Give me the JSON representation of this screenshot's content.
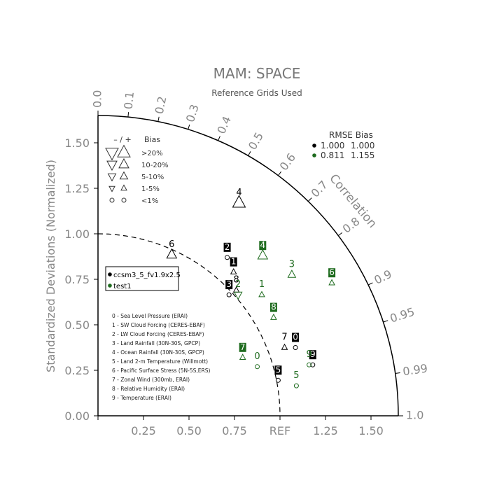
{
  "chart_data": {
    "type": "scatter",
    "diagram": "taylor",
    "title": "MAM: SPACE",
    "subtitle": "Reference Grids Used",
    "ylabel": "Standardized Deviations (Normalized)",
    "ref_label": "REF",
    "corr_label": "Correlation",
    "std_range": [
      0,
      1.65
    ],
    "std_ticks": [
      {
        "v": 0.0,
        "label": "0.00"
      },
      {
        "v": 0.25,
        "label": "0.25"
      },
      {
        "v": 0.5,
        "label": "0.50"
      },
      {
        "v": 0.75,
        "label": "0.75"
      },
      {
        "v": 1.0,
        "label": "1.00"
      },
      {
        "v": 1.25,
        "label": "1.25"
      },
      {
        "v": 1.5,
        "label": "1.50"
      }
    ],
    "x_ticks": [
      {
        "v": 0.25,
        "label": "0.25"
      },
      {
        "v": 0.5,
        "label": "0.50"
      },
      {
        "v": 0.75,
        "label": "0.75"
      },
      {
        "v": 1.25,
        "label": "1.25"
      },
      {
        "v": 1.5,
        "label": "1.50"
      }
    ],
    "corr_ticks": [
      {
        "v": 0.0,
        "label": "0.0"
      },
      {
        "v": 0.1,
        "label": "0.1"
      },
      {
        "v": 0.2,
        "label": "0.2"
      },
      {
        "v": 0.3,
        "label": "0.3"
      },
      {
        "v": 0.4,
        "label": "0.4"
      },
      {
        "v": 0.5,
        "label": "0.5"
      },
      {
        "v": 0.6,
        "label": "0.6"
      },
      {
        "v": 0.7,
        "label": "0.7"
      },
      {
        "v": 0.8,
        "label": "0.8"
      },
      {
        "v": 0.9,
        "label": "0.9"
      },
      {
        "v": 0.95,
        "label": "0.95"
      },
      {
        "v": 0.99,
        "label": "0.99"
      },
      {
        "v": 1.0,
        "label": "1.0"
      }
    ],
    "rmse_bias_header": "RMSE Bias",
    "rmse_bias": [
      {
        "rmse": "1.000",
        "bias": "1.000",
        "color": "#000000"
      },
      {
        "rmse": "0.811",
        "bias": "1.155",
        "color": "#1e6b1e"
      }
    ],
    "bias_legend": {
      "header_sign": "– / +",
      "header_bias": "Bias",
      "rows": [
        {
          "label": ">20%",
          "size": 9
        },
        {
          "label": "10-20%",
          "size": 7
        },
        {
          "label": "5-10%",
          "size": 5.5
        },
        {
          "label": "1-5%",
          "size": 4
        },
        {
          "label": "<1%",
          "size": 3
        }
      ]
    },
    "series": [
      {
        "name": "ccsm3_5_fv1.9x2.5",
        "color": "#000000",
        "points": [
          {
            "label": "0",
            "x": 1.085,
            "y": 0.375,
            "bias": "<1%",
            "dir": "+"
          },
          {
            "label": "1",
            "x": 0.745,
            "y": 0.79,
            "bias": "1-5%",
            "dir": "+"
          },
          {
            "label": "2",
            "x": 0.71,
            "y": 0.87,
            "bias": "<1%",
            "dir": "+"
          },
          {
            "label": "3",
            "x": 0.72,
            "y": 0.665,
            "bias": "<1%",
            "dir": "+"
          },
          {
            "label": "4",
            "x": 0.775,
            "y": 1.17,
            "bias": ">20%",
            "dir": "+"
          },
          {
            "label": "5",
            "x": 0.99,
            "y": 0.195,
            "bias": "<1%",
            "dir": "+"
          },
          {
            "label": "6",
            "x": 0.405,
            "y": 0.885,
            "bias": "10-20%",
            "dir": "+"
          },
          {
            "label": "7",
            "x": 1.025,
            "y": 0.375,
            "bias": "1-5%",
            "dir": "+"
          },
          {
            "label": "8",
            "x": 0.76,
            "y": 0.69,
            "bias": "1-5%",
            "dir": "+"
          },
          {
            "label": "9",
            "x": 1.18,
            "y": 0.28,
            "bias": "<1%",
            "dir": "+"
          }
        ]
      },
      {
        "name": "test1",
        "color": "#1e6b1e",
        "points": [
          {
            "label": "0",
            "x": 0.875,
            "y": 0.27,
            "bias": "<1%",
            "dir": "+"
          },
          {
            "label": "1",
            "x": 0.9,
            "y": 0.665,
            "bias": "1-5%",
            "dir": "+"
          },
          {
            "label": "2",
            "x": 0.77,
            "y": 0.665,
            "bias": "5-10%",
            "dir": "-"
          },
          {
            "label": "3",
            "x": 1.065,
            "y": 0.775,
            "bias": "5-10%",
            "dir": "+"
          },
          {
            "label": "4",
            "x": 0.905,
            "y": 0.88,
            "bias": "10-20%",
            "dir": "+"
          },
          {
            "label": "5",
            "x": 1.09,
            "y": 0.165,
            "bias": "<1%",
            "dir": "+"
          },
          {
            "label": "6",
            "x": 1.285,
            "y": 0.73,
            "bias": "1-5%",
            "dir": "+"
          },
          {
            "label": "7",
            "x": 0.795,
            "y": 0.32,
            "bias": "1-5%",
            "dir": "+"
          },
          {
            "label": "8",
            "x": 0.965,
            "y": 0.54,
            "bias": "1-5%",
            "dir": "+"
          },
          {
            "label": "9",
            "x": 1.16,
            "y": 0.28,
            "bias": "<1%",
            "dir": "+"
          }
        ]
      }
    ],
    "case_legend": [
      "0 - Sea Level Pressure (ERAI)",
      "1 - SW Cloud Forcing (CERES-EBAF)",
      "2 - LW Cloud Forcing (CERES-EBAF)",
      "3 - Land Rainfall (30N-30S, GPCP)",
      "4 - Ocean Rainfall (30N-30S, GPCP)",
      "5 - Land 2-m Temperature (Willmott)",
      "6 - Pacific Surface Stress (5N-5S,ERS)",
      "7 - Zonal Wind (300mb, ERAI)",
      "8 - Relative Humidity (ERAI)",
      "9 - Temperature (ERAI)"
    ]
  }
}
